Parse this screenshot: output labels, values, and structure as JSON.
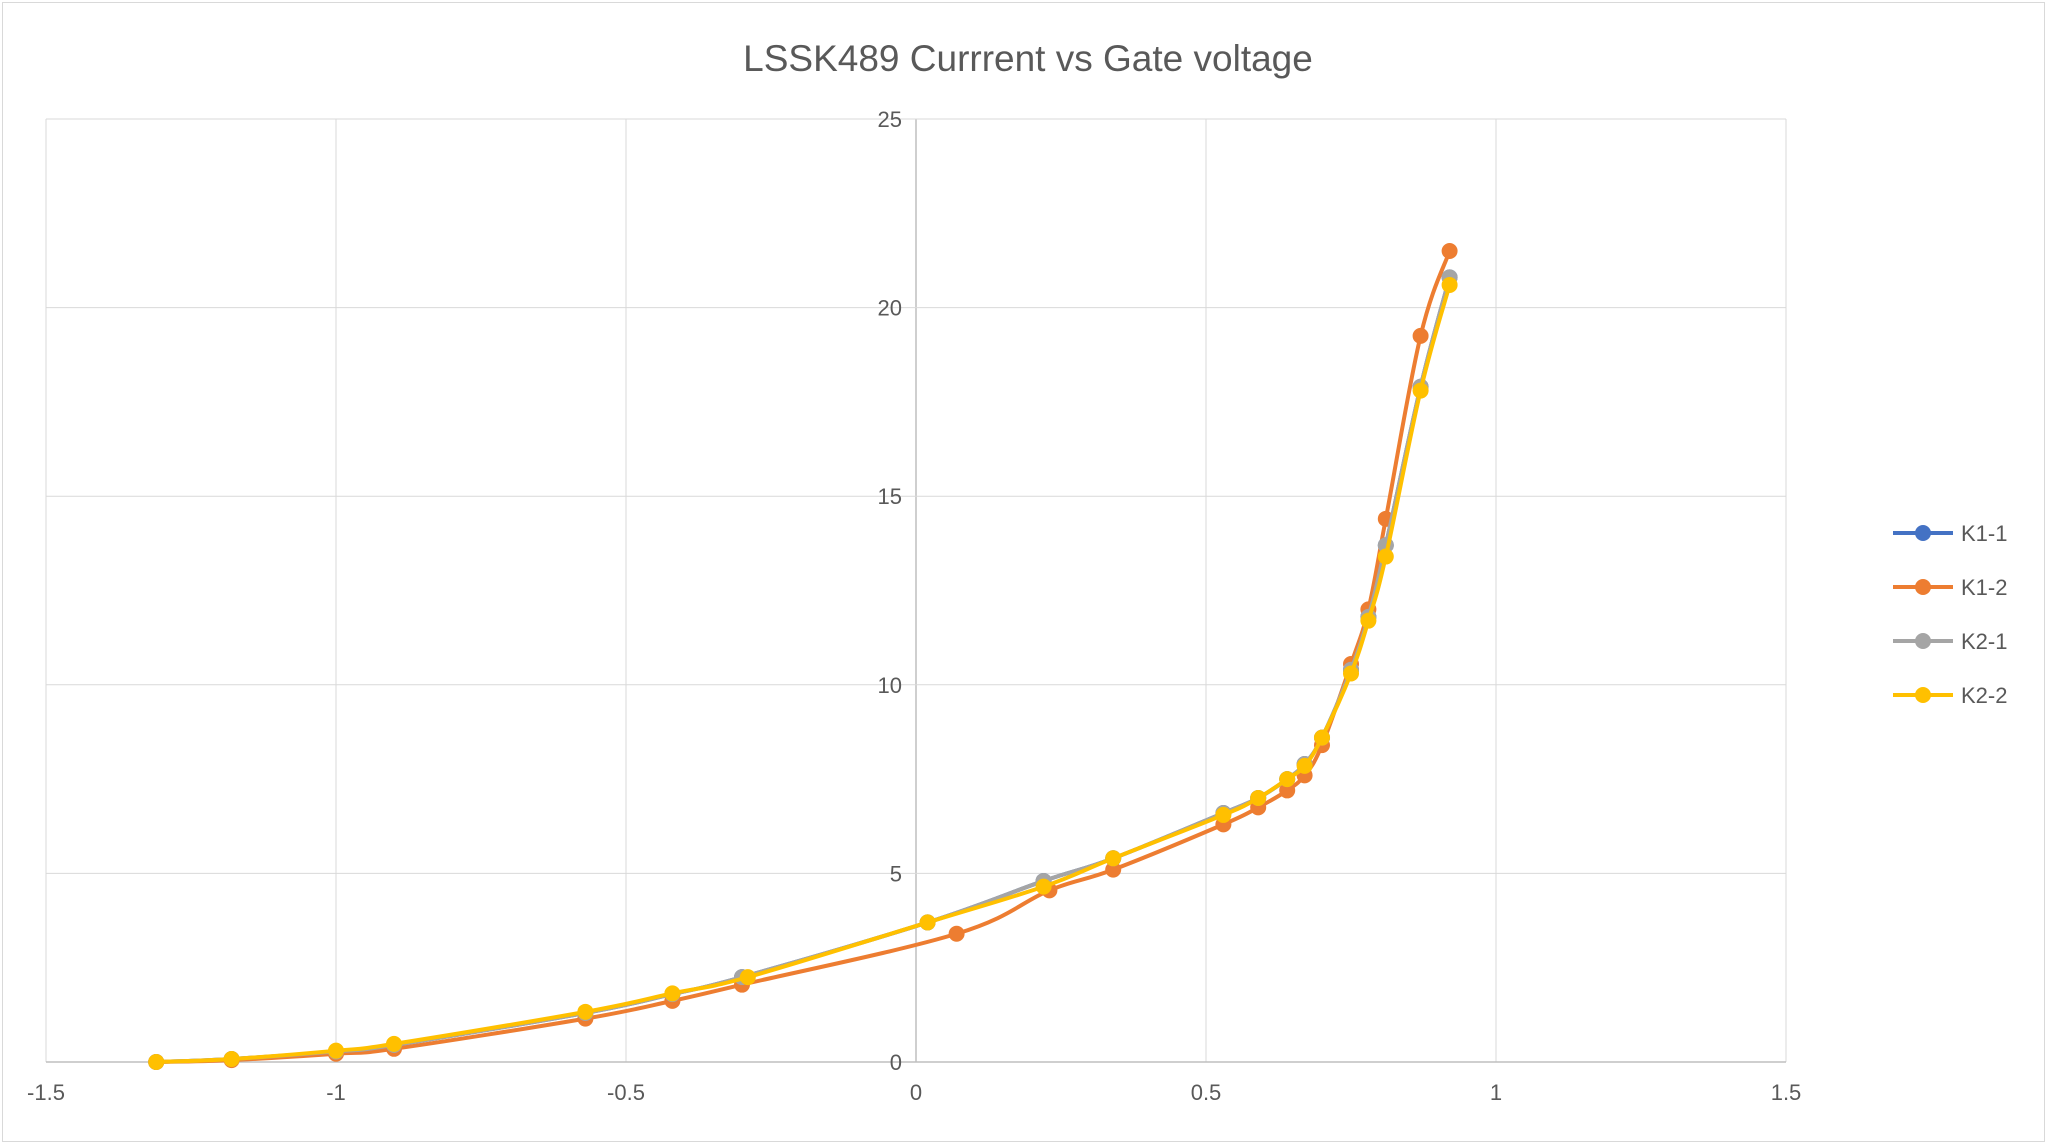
{
  "chart_data": {
    "type": "scatter",
    "title": "LSSK489 Currrent vs Gate voltage",
    "xlabel": "",
    "ylabel": "",
    "xlim": [
      -1.5,
      1.5
    ],
    "ylim": [
      0,
      25
    ],
    "x_ticks": [
      -1.5,
      -1,
      -0.5,
      0,
      0.5,
      1,
      1.5
    ],
    "x_tick_labels": [
      "-1.5",
      "-1",
      "-0.5",
      "0",
      "0.5",
      "1",
      "1.5"
    ],
    "y_ticks": [
      0,
      5,
      10,
      15,
      20,
      25
    ],
    "y_tick_labels": [
      "0",
      "5",
      "10",
      "15",
      "20",
      "25"
    ],
    "grid": true,
    "legend_position": "right",
    "series": [
      {
        "name": "K1-1",
        "color": "#4472c4",
        "x": [
          -1.31,
          -1.18,
          -1.0,
          -0.9,
          -0.57,
          -0.42,
          -0.3,
          0.02,
          0.22,
          0.34,
          0.53,
          0.59,
          0.64,
          0.67,
          0.7,
          0.75,
          0.78,
          0.81,
          0.87,
          0.92
        ],
        "y": [
          0.0,
          0.08,
          0.28,
          0.45,
          1.3,
          1.8,
          2.25,
          3.7,
          4.8,
          5.4,
          6.6,
          7.0,
          7.5,
          7.9,
          8.6,
          10.4,
          11.8,
          13.7,
          17.9,
          20.8
        ]
      },
      {
        "name": "K1-2",
        "color": "#ed7d31",
        "x": [
          -1.31,
          -1.18,
          -1.0,
          -0.9,
          -0.57,
          -0.42,
          -0.3,
          0.07,
          0.23,
          0.34,
          0.53,
          0.59,
          0.64,
          0.67,
          0.7,
          0.75,
          0.78,
          0.81,
          0.87,
          0.92
        ],
        "y": [
          0.0,
          0.05,
          0.22,
          0.35,
          1.15,
          1.62,
          2.05,
          3.4,
          4.55,
          5.1,
          6.3,
          6.75,
          7.2,
          7.6,
          8.4,
          10.55,
          12.0,
          14.4,
          19.25,
          21.5
        ]
      },
      {
        "name": "K2-1",
        "color": "#a5a5a5",
        "x": [
          -1.31,
          -1.18,
          -1.0,
          -0.9,
          -0.57,
          -0.42,
          -0.3,
          0.02,
          0.22,
          0.34,
          0.53,
          0.59,
          0.64,
          0.67,
          0.7,
          0.75,
          0.78,
          0.81,
          0.87,
          0.92
        ],
        "y": [
          0.0,
          0.08,
          0.28,
          0.45,
          1.3,
          1.8,
          2.25,
          3.7,
          4.8,
          5.4,
          6.6,
          7.0,
          7.5,
          7.9,
          8.6,
          10.4,
          11.8,
          13.7,
          17.9,
          20.8
        ]
      },
      {
        "name": "K2-2",
        "color": "#ffc000",
        "x": [
          -1.31,
          -1.18,
          -1.0,
          -0.9,
          -0.57,
          -0.42,
          -0.29,
          0.02,
          0.22,
          0.34,
          0.53,
          0.59,
          0.64,
          0.67,
          0.7,
          0.75,
          0.78,
          0.81,
          0.87,
          0.92
        ],
        "y": [
          0.0,
          0.08,
          0.3,
          0.48,
          1.33,
          1.82,
          2.25,
          3.7,
          4.65,
          5.4,
          6.55,
          7.0,
          7.5,
          7.85,
          8.6,
          10.3,
          11.7,
          13.4,
          17.8,
          20.6
        ]
      }
    ]
  }
}
